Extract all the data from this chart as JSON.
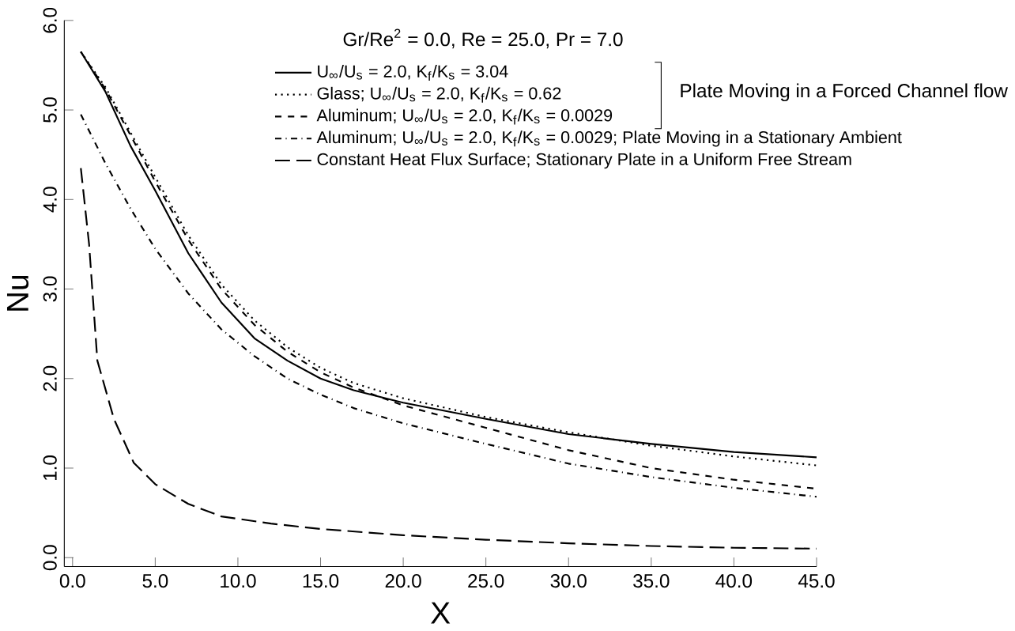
{
  "chart_data": {
    "type": "line",
    "xlabel": "X",
    "ylabel": "Nu",
    "xlim": [
      -0.5,
      45
    ],
    "ylim": [
      -0.1,
      6
    ],
    "xticks": [
      {
        "value": 0,
        "label": "0.0"
      },
      {
        "value": 5,
        "label": "5.0"
      },
      {
        "value": 10,
        "label": "10.0"
      },
      {
        "value": 15,
        "label": "15.0"
      },
      {
        "value": 20,
        "label": "20.0"
      },
      {
        "value": 25,
        "label": "25.0"
      },
      {
        "value": 30,
        "label": "30.0"
      },
      {
        "value": 35,
        "label": "35.0"
      },
      {
        "value": 40,
        "label": "40.0"
      },
      {
        "value": 45,
        "label": "45.0"
      }
    ],
    "yticks": [
      {
        "value": 0,
        "label": "0.0"
      },
      {
        "value": 1,
        "label": "1.0"
      },
      {
        "value": 2,
        "label": "2.0"
      },
      {
        "value": 3,
        "label": "3.0"
      },
      {
        "value": 4,
        "label": "4.0"
      },
      {
        "value": 5,
        "label": "5.0"
      },
      {
        "value": 6,
        "label": "6.0"
      }
    ],
    "annotations": [
      "Gr/Re$^{2}$ = 0.0, Re = 25.0, Pr = 7.0",
      "Plate Moving in a Forced Channel flow"
    ],
    "legend": "top right",
    "grid": false,
    "marker": "none",
    "series": [
      {
        "name": "U$_{∞}$/U$_{s}$ = 2.0, K$_{f}$/K$_{s}$ = 3.04",
        "color": "#000000",
        "line_style": "solid",
        "x": [
          0.5,
          2,
          3.5,
          5,
          7,
          9,
          11,
          13,
          15,
          17,
          20,
          25,
          30,
          35,
          40,
          45
        ],
        "values": [
          5.65,
          5.2,
          4.6,
          4.1,
          3.4,
          2.85,
          2.45,
          2.2,
          2.0,
          1.87,
          1.73,
          1.55,
          1.38,
          1.27,
          1.18,
          1.12
        ]
      },
      {
        "name": "Glass; U$_{∞}$/U$_{s}$ = 2.0, K$_{f}$/K$_{s}$ = 0.62",
        "color": "#000000",
        "line_style": "dotted",
        "x": [
          0.5,
          2,
          3.5,
          5,
          7,
          9,
          11,
          13,
          15,
          17,
          20,
          25,
          30,
          35,
          40,
          45
        ],
        "values": [
          5.65,
          5.25,
          4.75,
          4.25,
          3.6,
          3.05,
          2.65,
          2.35,
          2.12,
          1.95,
          1.78,
          1.57,
          1.4,
          1.25,
          1.13,
          1.03
        ]
      },
      {
        "name": "Aluminum; U$_{∞}$/U$_{s}$ = 2.0, K$_{f}$/K$_{s}$ = 0.0029",
        "color": "#000000",
        "line_style": "dashed",
        "x": [
          0.5,
          2,
          3.5,
          5,
          7,
          9,
          11,
          13,
          15,
          17,
          20,
          25,
          30,
          35,
          40,
          45
        ],
        "values": [
          5.65,
          5.23,
          4.72,
          4.2,
          3.55,
          3.0,
          2.6,
          2.3,
          2.07,
          1.9,
          1.7,
          1.45,
          1.2,
          1.0,
          0.87,
          0.77
        ]
      },
      {
        "name": "Aluminum; U$_{∞}$/U$_{s}$ = 2.0, K$_{f}$/K$_{s}$ = 0.0029; Plate Moving in a Stationary Ambient",
        "color": "#000000",
        "line_style": "dashdot",
        "x": [
          0.5,
          2,
          3.5,
          5,
          7,
          9,
          11,
          13,
          15,
          17,
          20,
          25,
          30,
          35,
          40,
          45
        ],
        "values": [
          4.95,
          4.4,
          3.9,
          3.45,
          2.95,
          2.55,
          2.25,
          2.0,
          1.82,
          1.67,
          1.5,
          1.27,
          1.05,
          0.9,
          0.78,
          0.68
        ]
      },
      {
        "name": "Constant Heat Flux Surface; Stationary Plate in a Uniform Free Stream",
        "color": "#000000",
        "line_style": "longdash",
        "x": [
          0.5,
          1,
          1.5,
          2.5,
          3.7,
          5,
          7,
          9,
          12,
          15,
          20,
          25,
          30,
          35,
          40,
          45
        ],
        "values": [
          4.35,
          3.5,
          2.2,
          1.55,
          1.06,
          0.82,
          0.6,
          0.46,
          0.38,
          0.32,
          0.25,
          0.2,
          0.16,
          0.13,
          0.11,
          0.1
        ]
      }
    ]
  }
}
